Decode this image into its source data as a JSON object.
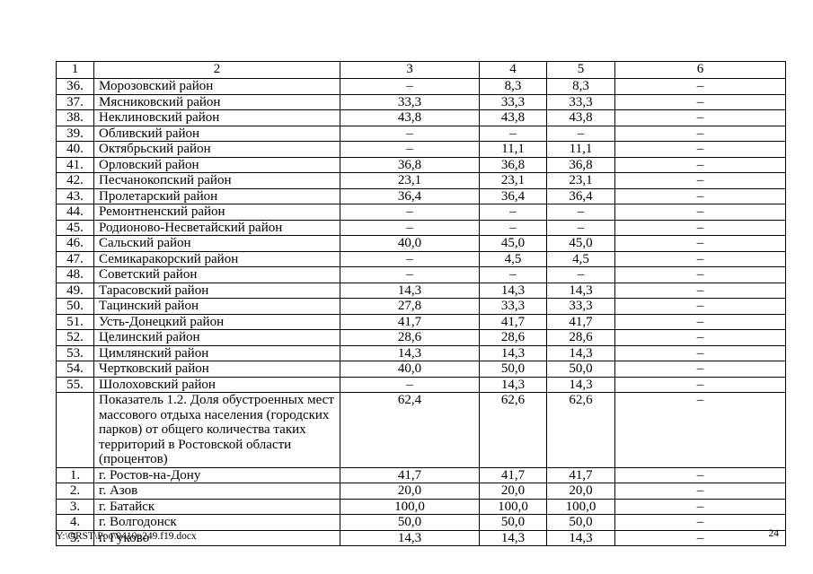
{
  "footer": {
    "path": "Y:\\ORST\\Ppo\\0410p249.f19.docx",
    "page_number": "24"
  },
  "table": {
    "headers": [
      "1",
      "2",
      "3",
      "4",
      "5",
      "6"
    ],
    "rows": [
      {
        "num": "36.",
        "name": "Морозовский район",
        "c3": "–",
        "c4": "8,3",
        "c5": "8,3",
        "c6": "–"
      },
      {
        "num": "37.",
        "name": "Мясниковский район",
        "c3": "33,3",
        "c4": "33,3",
        "c5": "33,3",
        "c6": "–"
      },
      {
        "num": "38.",
        "name": "Неклиновский район",
        "c3": "43,8",
        "c4": "43,8",
        "c5": "43,8",
        "c6": "–"
      },
      {
        "num": "39.",
        "name": "Обливский район",
        "c3": "–",
        "c4": "–",
        "c5": "–",
        "c6": "–"
      },
      {
        "num": "40.",
        "name": "Октябрьский район",
        "c3": "–",
        "c4": "11,1",
        "c5": "11,1",
        "c6": "–"
      },
      {
        "num": "41.",
        "name": "Орловский район",
        "c3": "36,8",
        "c4": "36,8",
        "c5": "36,8",
        "c6": "–"
      },
      {
        "num": "42.",
        "name": "Песчанокопский район",
        "c3": "23,1",
        "c4": "23,1",
        "c5": "23,1",
        "c6": "–"
      },
      {
        "num": "43.",
        "name": "Пролетарский район",
        "c3": "36,4",
        "c4": "36,4",
        "c5": "36,4",
        "c6": "–"
      },
      {
        "num": "44.",
        "name": "Ремонтненский район",
        "c3": "–",
        "c4": "–",
        "c5": "–",
        "c6": "–"
      },
      {
        "num": "45.",
        "name": "Родионово-Несветайский район",
        "c3": "–",
        "c4": "–",
        "c5": "–",
        "c6": "–"
      },
      {
        "num": "46.",
        "name": "Сальский район",
        "c3": "40,0",
        "c4": "45,0",
        "c5": "45,0",
        "c6": "–"
      },
      {
        "num": "47.",
        "name": "Семикаракорский район",
        "c3": "–",
        "c4": "4,5",
        "c5": "4,5",
        "c6": "–"
      },
      {
        "num": "48.",
        "name": "Советский район",
        "c3": "–",
        "c4": "–",
        "c5": "–",
        "c6": "–"
      },
      {
        "num": "49.",
        "name": "Тарасовский район",
        "c3": "14,3",
        "c4": "14,3",
        "c5": "14,3",
        "c6": "–"
      },
      {
        "num": "50.",
        "name": "Тацинский район",
        "c3": "27,8",
        "c4": "33,3",
        "c5": "33,3",
        "c6": "–"
      },
      {
        "num": "51.",
        "name": "Усть-Донецкий район",
        "c3": "41,7",
        "c4": "41,7",
        "c5": "41,7",
        "c6": "–"
      },
      {
        "num": "52.",
        "name": "Целинский район",
        "c3": "28,6",
        "c4": "28,6",
        "c5": "28,6",
        "c6": "–"
      },
      {
        "num": "53.",
        "name": "Цимлянский район",
        "c3": "14,3",
        "c4": "14,3",
        "c5": "14,3",
        "c6": "–"
      },
      {
        "num": "54.",
        "name": "Чертковский район",
        "c3": "40,0",
        "c4": "50,0",
        "c5": "50,0",
        "c6": "–"
      },
      {
        "num": "55.",
        "name": "Шолоховский район",
        "c3": "–",
        "c4": "14,3",
        "c5": "14,3",
        "c6": "–"
      },
      {
        "num": "",
        "name": "Показатель 1.2. Доля обустроенных мест\nмассового отдыха населения (городских\nпарков) от общего количества таких\nтерриторий в Ростовской области\n(процентов)",
        "c3": "62,4",
        "c4": "62,6",
        "c5": "62,6",
        "c6": "–"
      },
      {
        "num": "1.",
        "name": "г. Ростов-на-Дону",
        "c3": "41,7",
        "c4": "41,7",
        "c5": "41,7",
        "c6": "–"
      },
      {
        "num": "2.",
        "name": "г. Азов",
        "c3": "20,0",
        "c4": "20,0",
        "c5": "20,0",
        "c6": "–"
      },
      {
        "num": "3.",
        "name": "г. Батайск",
        "c3": "100,0",
        "c4": "100,0",
        "c5": "100,0",
        "c6": "–"
      },
      {
        "num": "4.",
        "name": "г. Волгодонск",
        "c3": "50,0",
        "c4": "50,0",
        "c5": "50,0",
        "c6": "–"
      },
      {
        "num": "5.",
        "name": "г. Гуково",
        "c3": "14,3",
        "c4": "14,3",
        "c5": "14,3",
        "c6": "–"
      }
    ]
  }
}
